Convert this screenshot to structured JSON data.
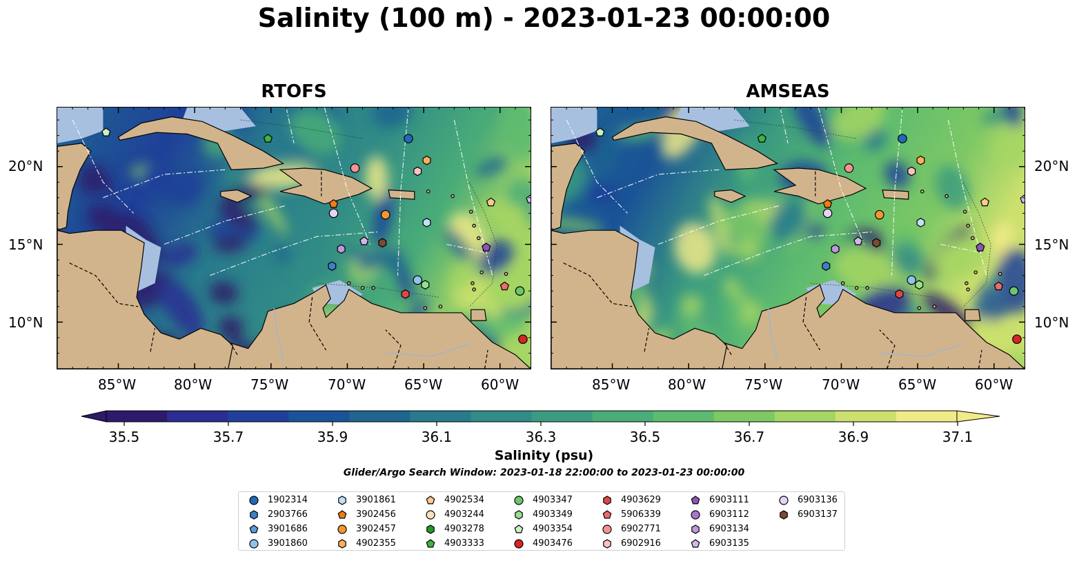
{
  "title": "Salinity (100 m) - 2023-01-23 00:00:00",
  "panels": [
    {
      "title": "RTOFS"
    },
    {
      "title": "AMSEAS"
    }
  ],
  "lat_labels": [
    "20°N",
    "15°N",
    "10°N"
  ],
  "lon_labels": [
    "85°W",
    "80°W",
    "75°W",
    "70°W",
    "65°W",
    "60°W"
  ],
  "colorbar": {
    "label": "Salinity (psu)",
    "ticks": [
      "35.5",
      "35.7",
      "35.9",
      "36.1",
      "36.3",
      "36.5",
      "36.7",
      "36.9",
      "37.1"
    ],
    "colors": [
      "#2d1a6b",
      "#2b2d92",
      "#1f3f99",
      "#1a5397",
      "#1f6590",
      "#287a8c",
      "#318b86",
      "#3b9b80",
      "#4aac78",
      "#5dbb6f",
      "#7ec865",
      "#a5d564",
      "#cbe06e",
      "#f1ea88"
    ],
    "extend": "both"
  },
  "search_window": "Glider/Argo Search Window: 2023-01-18 22:00:00 to 2023-01-23 00:00:00",
  "colors": {
    "land": "#d2b48c",
    "shelf": "#a7c0e0",
    "contour": "#ffffff"
  },
  "legend": [
    {
      "id": "1902314",
      "marker": "circle",
      "color": "#1f6bb5"
    },
    {
      "id": "2903766",
      "marker": "hexagon",
      "color": "#3f7fc7"
    },
    {
      "id": "3901686",
      "marker": "pentagon",
      "color": "#5b9bdc"
    },
    {
      "id": "3901860",
      "marker": "circle",
      "color": "#8fc3ec"
    },
    {
      "id": "3901861",
      "marker": "hexagon",
      "color": "#bfe0f7"
    },
    {
      "id": "3902456",
      "marker": "pentagon",
      "color": "#f07c12"
    },
    {
      "id": "3902457",
      "marker": "circle",
      "color": "#f59632"
    },
    {
      "id": "4902355",
      "marker": "hexagon",
      "color": "#f9b05a"
    },
    {
      "id": "4902534",
      "marker": "pentagon",
      "color": "#fbc88e"
    },
    {
      "id": "4903244",
      "marker": "circle",
      "color": "#fde0c0"
    },
    {
      "id": "4903278",
      "marker": "hexagon",
      "color": "#229a27"
    },
    {
      "id": "4903333",
      "marker": "pentagon",
      "color": "#3fb23f"
    },
    {
      "id": "4903347",
      "marker": "circle",
      "color": "#6cc66a"
    },
    {
      "id": "4903349",
      "marker": "hexagon",
      "color": "#98dd90"
    },
    {
      "id": "4903354",
      "marker": "pentagon",
      "color": "#c9f2c0"
    },
    {
      "id": "4903476",
      "marker": "circle",
      "color": "#d62526"
    },
    {
      "id": "4903629",
      "marker": "hexagon",
      "color": "#e04646"
    },
    {
      "id": "5906339",
      "marker": "pentagon",
      "color": "#ec6b6b"
    },
    {
      "id": "6902771",
      "marker": "circle",
      "color": "#f59393"
    },
    {
      "id": "6902916",
      "marker": "hexagon",
      "color": "#fbc2c2"
    },
    {
      "id": "6903111",
      "marker": "pentagon",
      "color": "#8e55b8"
    },
    {
      "id": "6903112",
      "marker": "circle",
      "color": "#a676cc"
    },
    {
      "id": "6903134",
      "marker": "hexagon",
      "color": "#bd98dc"
    },
    {
      "id": "6903135",
      "marker": "pentagon",
      "color": "#d3b6ea"
    },
    {
      "id": "6903136",
      "marker": "circle",
      "color": "#e6d2f4"
    },
    {
      "id": "6903137",
      "marker": "hexagon",
      "color": "#7a4a33"
    }
  ],
  "floats": [
    {
      "id": "4903354",
      "lon": -85.8,
      "lat": 22.2
    },
    {
      "id": "4903333",
      "lon": -75.2,
      "lat": 21.8
    },
    {
      "id": "1902314",
      "lon": -66.0,
      "lat": 21.8
    },
    {
      "id": "4902355",
      "lon": -64.8,
      "lat": 20.4
    },
    {
      "id": "6902771",
      "lon": -69.5,
      "lat": 19.9
    },
    {
      "id": "6902916",
      "lon": -65.4,
      "lat": 19.7
    },
    {
      "id": "3902456",
      "lon": -70.9,
      "lat": 17.6
    },
    {
      "id": "4902534",
      "lon": -60.6,
      "lat": 17.7
    },
    {
      "id": "6903135",
      "lon": -58.0,
      "lat": 17.9
    },
    {
      "id": "6903136",
      "lon": -70.9,
      "lat": 17.0
    },
    {
      "id": "3902457",
      "lon": -67.5,
      "lat": 16.9
    },
    {
      "id": "3901861",
      "lon": -64.8,
      "lat": 16.4
    },
    {
      "id": "6903134",
      "lon": -70.4,
      "lat": 14.7
    },
    {
      "id": "6903135",
      "lon": -68.9,
      "lat": 15.2
    },
    {
      "id": "6903137",
      "lon": -67.7,
      "lat": 15.1
    },
    {
      "id": "6903111",
      "lon": -60.9,
      "lat": 14.8
    },
    {
      "id": "2903766",
      "lon": -71.0,
      "lat": 13.6
    },
    {
      "id": "3901860",
      "lon": -65.4,
      "lat": 12.7
    },
    {
      "id": "4903349",
      "lon": -64.9,
      "lat": 12.4
    },
    {
      "id": "5906339",
      "lon": -59.7,
      "lat": 12.3
    },
    {
      "id": "4903629",
      "lon": -66.2,
      "lat": 11.8
    },
    {
      "id": "4903347",
      "lon": -58.7,
      "lat": 12.0
    },
    {
      "id": "4903476",
      "lon": -58.5,
      "lat": 8.9
    }
  ]
}
